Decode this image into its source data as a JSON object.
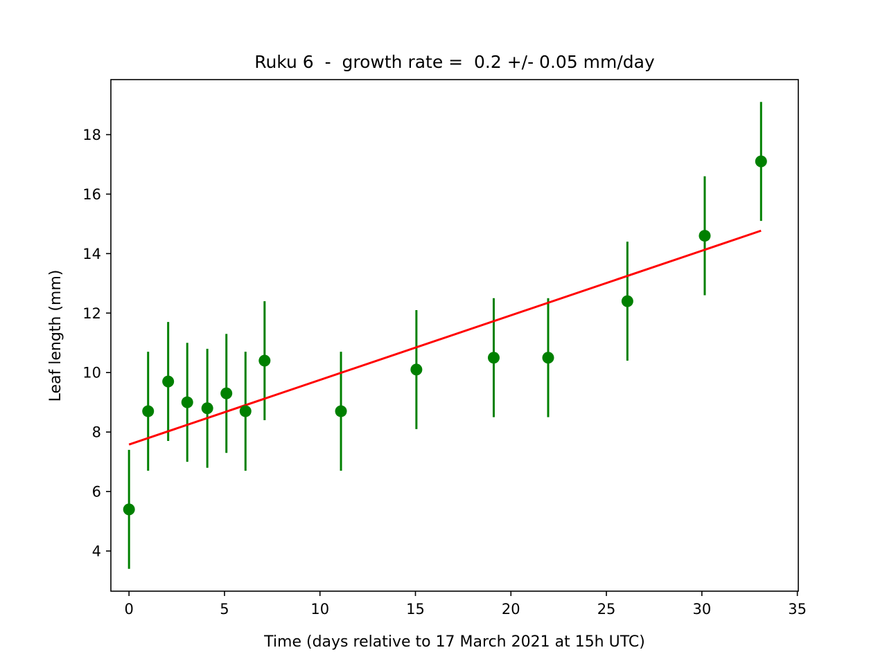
{
  "chart_data": {
    "type": "scatter",
    "title": "Ruku 6  -  growth rate =  0.2 +/- 0.05 mm/day",
    "xlabel": "Time (days relative to 17 March 2021 at 15h UTC)",
    "ylabel": "Leaf length (mm)",
    "xlim": [
      -0.95,
      35.05
    ],
    "ylim": [
      2.65,
      19.85
    ],
    "xticks": [
      0,
      5,
      10,
      15,
      20,
      25,
      30,
      35
    ],
    "yticks": [
      4,
      6,
      8,
      10,
      12,
      14,
      16,
      18
    ],
    "grid": false,
    "series": [
      {
        "kind": "errorbar",
        "color": "#008000",
        "x": [
          0.0,
          1.0,
          2.05,
          3.05,
          4.1,
          5.1,
          6.1,
          7.1,
          11.1,
          15.05,
          19.1,
          21.95,
          26.1,
          30.15,
          33.1
        ],
        "y": [
          5.4,
          8.7,
          9.7,
          9.0,
          8.8,
          9.3,
          8.7,
          10.4,
          8.7,
          10.1,
          10.5,
          10.5,
          12.4,
          14.6,
          17.1
        ],
        "yerr": [
          2.0,
          2.0,
          2.0,
          2.0,
          2.0,
          2.0,
          2.0,
          2.0,
          2.0,
          2.0,
          2.0,
          2.0,
          2.0,
          2.0,
          2.0
        ]
      },
      {
        "kind": "fit-line",
        "color": "#ff0000",
        "x": [
          0.0,
          33.1
        ],
        "y": [
          7.58,
          14.77
        ]
      }
    ]
  }
}
